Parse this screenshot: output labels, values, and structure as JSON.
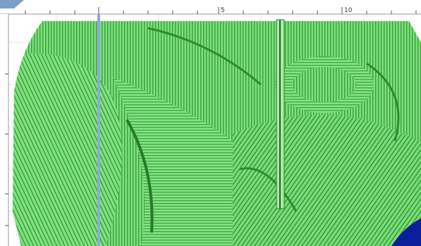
{
  "ruler": {
    "labels": [
      "5",
      "10"
    ]
  }
}
